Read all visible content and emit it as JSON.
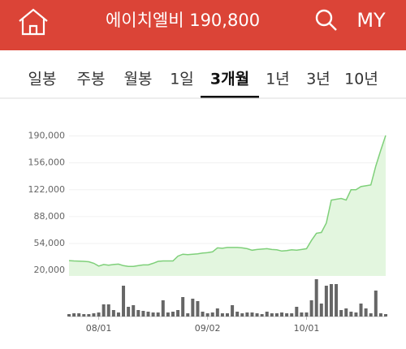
{
  "header": {
    "title": "에이치엘비 190,800",
    "right_label": "MY"
  },
  "tabs": {
    "items": [
      "일봉",
      "주봉",
      "월봉",
      "1일",
      "3개월",
      "1년",
      "3년",
      "10년"
    ],
    "active": 4
  },
  "chart": {
    "type": "area",
    "values": [
      32400,
      32000,
      31800,
      31500,
      31000,
      29000,
      25500,
      27500,
      26500,
      27500,
      28000,
      26000,
      25000,
      25000,
      26000,
      27000,
      27000,
      29000,
      31500,
      32000,
      32000,
      32000,
      38000,
      40500,
      40000,
      40500,
      41000,
      42000,
      42500,
      43500,
      48500,
      48000,
      49000,
      49000,
      49000,
      48500,
      47500,
      45500,
      46500,
      47000,
      47500,
      46500,
      46000,
      44500,
      45000,
      46000,
      45500,
      46500,
      47500,
      58000,
      67000,
      68000,
      80000,
      109000,
      110000,
      111000,
      109000,
      122000,
      122000,
      126000,
      127000,
      128000,
      152000,
      172000,
      190800
    ],
    "color": "#7fd07a",
    "ylim": [
      13000,
      208000
    ],
    "yticks": [
      {
        "value": 20000,
        "label": "20,000"
      },
      {
        "value": 54000,
        "label": "54,000"
      },
      {
        "value": 88000,
        "label": "88,000"
      },
      {
        "value": 122000,
        "label": "122,000"
      },
      {
        "value": 156000,
        "label": "156,000"
      },
      {
        "value": 190000,
        "label": "190,000"
      }
    ],
    "xticks": [
      {
        "value": 6,
        "label": "08/01"
      },
      {
        "value": 28,
        "label": "09/02"
      },
      {
        "value": 48,
        "label": "10/01"
      }
    ],
    "volume": {
      "values": [
        3,
        4,
        4,
        3,
        3,
        4,
        5,
        15,
        15,
        8,
        5,
        38,
        12,
        14,
        8,
        7,
        6,
        5,
        5,
        20,
        5,
        6,
        8,
        24,
        4,
        22,
        19,
        6,
        4,
        5,
        10,
        4,
        4,
        14,
        6,
        4,
        5,
        5,
        4,
        3,
        6,
        4,
        4,
        5,
        4,
        4,
        12,
        5,
        5,
        20,
        46,
        16,
        38,
        40,
        40,
        8,
        10,
        6,
        5,
        16,
        10,
        4,
        32,
        4,
        3
      ],
      "color": "#666666",
      "ylim": [
        0,
        50
      ]
    }
  }
}
